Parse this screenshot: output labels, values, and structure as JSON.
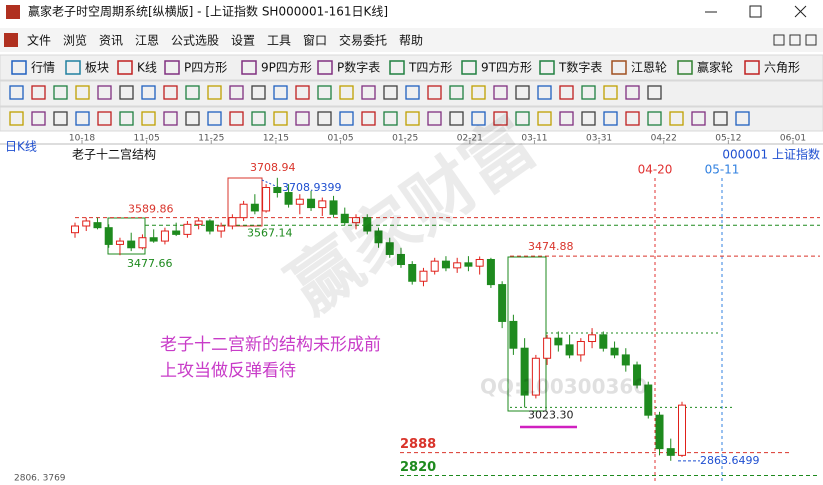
{
  "window": {
    "title": "赢家老子时空周期系统[纵横版] - [上证指数  SH000001-161日K线]"
  },
  "menu": [
    "文件",
    "浏览",
    "资讯",
    "江恩",
    "公式选股",
    "设置",
    "工具",
    "窗口",
    "交易委托",
    "帮助"
  ],
  "toolbar": [
    "行情",
    "板块",
    "K线",
    "P四方形",
    "9P四方形",
    "P数字表",
    "T四方形",
    "9T四方形",
    "T数字表",
    "江恩轮",
    "赢家轮",
    "六角形"
  ],
  "chart_data": {
    "type": "candlestick",
    "period": "日K线",
    "title": "老子十二宫结构",
    "symbol": "000001  上证指数",
    "x_labels": [
      "10-18",
      "11-05",
      "11-25",
      "12-15",
      "01-05",
      "01-25",
      "02-21",
      "03-11",
      "03-31",
      "04-22",
      "05-12",
      "06-01"
    ],
    "ylim": [
      2806.3769,
      3792
    ],
    "yticks": [
      {
        "value": 2806.3769,
        "label": "2806. 3769"
      }
    ],
    "up_color": "#e0201a",
    "down_color": "#1e8a1e",
    "candles": {
      "open": [
        3545,
        3565,
        3575,
        3560,
        3510,
        3520,
        3500,
        3530,
        3520,
        3550,
        3540,
        3570,
        3580,
        3550,
        3565,
        3590,
        3630,
        3610,
        3680,
        3665,
        3630,
        3645,
        3620,
        3640,
        3600,
        3575,
        3590,
        3550,
        3515,
        3480,
        3450,
        3400,
        3430,
        3460,
        3440,
        3455,
        3445,
        3465,
        3390,
        3280,
        3200,
        3060,
        3170,
        3230,
        3210,
        3180,
        3220,
        3240,
        3200,
        3180,
        3150,
        3090,
        3000,
        2900,
        2880
      ],
      "high": [
        3575,
        3590,
        3589.86,
        3570,
        3530,
        3545,
        3540,
        3555,
        3560,
        3575,
        3580,
        3590,
        3585,
        3575,
        3600,
        3640,
        3660,
        3690,
        3708.94,
        3690,
        3660,
        3670,
        3650,
        3655,
        3620,
        3600,
        3600,
        3560,
        3530,
        3500,
        3460,
        3440,
        3470,
        3474.88,
        3470,
        3475,
        3474,
        3470,
        3400,
        3300,
        3230,
        3180,
        3240,
        3250,
        3240,
        3230,
        3260,
        3250,
        3220,
        3200,
        3160,
        3100,
        3010,
        2930,
        3040
      ],
      "low": [
        3530,
        3550,
        3555,
        3500,
        3477.66,
        3490,
        3495,
        3515,
        3510,
        3535,
        3530,
        3555,
        3540,
        3530,
        3555,
        3580,
        3600,
        3605,
        3650,
        3620,
        3600,
        3610,
        3595,
        3590,
        3567.14,
        3555,
        3540,
        3500,
        3470,
        3440,
        3390,
        3385,
        3420,
        3430,
        3425,
        3430,
        3420,
        3380,
        3260,
        3180,
        3023.3,
        3050,
        3150,
        3190,
        3170,
        3160,
        3200,
        3190,
        3170,
        3130,
        3080,
        2990,
        2880,
        2863.6499,
        2875
      ],
      "close": [
        3565,
        3580,
        3560,
        3510,
        3520,
        3500,
        3530,
        3520,
        3550,
        3540,
        3570,
        3580,
        3550,
        3565,
        3590,
        3630,
        3610,
        3680,
        3665,
        3630,
        3645,
        3620,
        3640,
        3600,
        3575,
        3590,
        3550,
        3515,
        3480,
        3450,
        3400,
        3430,
        3460,
        3440,
        3455,
        3445,
        3465,
        3390,
        3280,
        3200,
        3060,
        3170,
        3230,
        3210,
        3180,
        3220,
        3240,
        3200,
        3180,
        3150,
        3090,
        3000,
        2900,
        2880,
        3030
      ]
    },
    "levels": [
      {
        "value": 3708.94,
        "label": "3708.94",
        "color": "#d9342b"
      },
      {
        "value": 3708.9399,
        "label": "3708.9399",
        "color": "#1f4fd0"
      },
      {
        "value": 3589.86,
        "label": "3589.86",
        "color": "#d9342b"
      },
      {
        "value": 3567.14,
        "label": "3567.14",
        "color": "#1e8a1e"
      },
      {
        "value": 3477.66,
        "label": "3477.66",
        "color": "#1e8a1e"
      },
      {
        "value": 3474.88,
        "label": "3474.88",
        "color": "#d9342b"
      },
      {
        "value": 3023.3,
        "label": "3023.30",
        "color": "#1e8a1e"
      },
      {
        "value": 2888,
        "label": "2888",
        "color": "#d9342b"
      },
      {
        "value": 2820,
        "label": "2820",
        "color": "#1e8a1e"
      },
      {
        "value": 2863.6499,
        "label": "2863.6499",
        "color": "#1f4fd0"
      }
    ],
    "markers": [
      {
        "label": "04-20",
        "color": "#e03030"
      },
      {
        "label": "05-11",
        "color": "#3080e0"
      }
    ],
    "note": [
      "老子十二宫新的结构未形成前",
      "上攻当做反弹看待"
    ],
    "note_color": "#c83cc8",
    "watermark": [
      "赢家财富",
      "QQ:100300360"
    ]
  }
}
